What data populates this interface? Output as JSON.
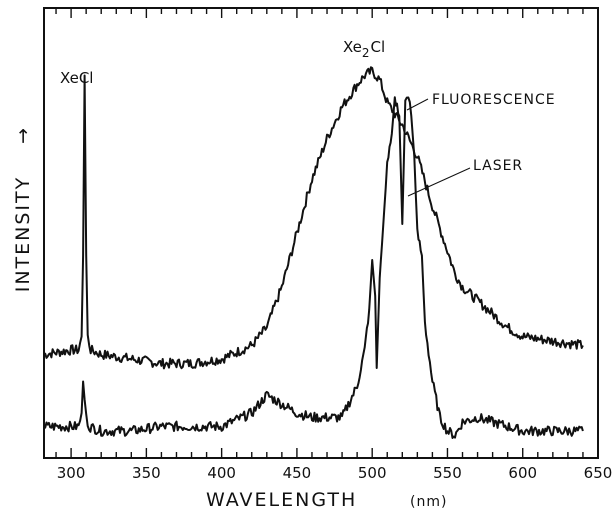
{
  "chart_data": {
    "type": "line",
    "xlabel": "WAVELENGTH",
    "xunit": "(nm)",
    "ylabel": "INTENSITY",
    "ylabel_arrow": "→",
    "xlim": [
      282,
      650
    ],
    "ylim": [
      0,
      1
    ],
    "xticks": [
      "300",
      "350",
      "400",
      "450",
      "500",
      "550",
      "600",
      "650"
    ],
    "grid": false,
    "annotations": {
      "xecl": "XeCl",
      "xe2cl_prefix": "Xe",
      "xe2cl_sub": "2",
      "xe2cl_suffix": "Cl",
      "fluorescence": "FLUORESCENCE",
      "laser": "LASER"
    },
    "series": [
      {
        "name": "FLUORESCENCE",
        "x": [
          282,
          300,
          305,
          307,
          308,
          309,
          310,
          311,
          313,
          320,
          340,
          360,
          380,
          400,
          420,
          430,
          440,
          450,
          460,
          470,
          480,
          490,
          495,
          500,
          505,
          510,
          520,
          530,
          540,
          550,
          555,
          560,
          570,
          580,
          590,
          600,
          620,
          640
        ],
        "y": [
          0.23,
          0.24,
          0.24,
          0.27,
          0.45,
          0.85,
          0.45,
          0.27,
          0.24,
          0.23,
          0.22,
          0.21,
          0.21,
          0.22,
          0.25,
          0.29,
          0.38,
          0.5,
          0.62,
          0.71,
          0.78,
          0.83,
          0.85,
          0.86,
          0.84,
          0.79,
          0.74,
          0.67,
          0.56,
          0.46,
          0.41,
          0.38,
          0.35,
          0.32,
          0.29,
          0.27,
          0.26,
          0.25
        ]
      },
      {
        "name": "LASER",
        "x": [
          282,
          300,
          305,
          307,
          308,
          310,
          312,
          320,
          340,
          360,
          380,
          400,
          420,
          430,
          440,
          450,
          460,
          470,
          480,
          490,
          495,
          498,
          500,
          502,
          503,
          505,
          508,
          510,
          513,
          515,
          518,
          520,
          522,
          524,
          526,
          528,
          530,
          533,
          535,
          540,
          545,
          550,
          555,
          560,
          570,
          580,
          590,
          600,
          620,
          640
        ],
        "y": [
          0.07,
          0.07,
          0.07,
          0.1,
          0.17,
          0.09,
          0.07,
          0.06,
          0.06,
          0.07,
          0.07,
          0.07,
          0.1,
          0.14,
          0.12,
          0.1,
          0.09,
          0.09,
          0.09,
          0.16,
          0.24,
          0.33,
          0.44,
          0.36,
          0.2,
          0.4,
          0.55,
          0.65,
          0.72,
          0.8,
          0.76,
          0.52,
          0.79,
          0.81,
          0.76,
          0.67,
          0.5,
          0.45,
          0.3,
          0.17,
          0.09,
          0.06,
          0.05,
          0.08,
          0.09,
          0.08,
          0.07,
          0.06,
          0.06,
          0.06
        ]
      }
    ]
  }
}
